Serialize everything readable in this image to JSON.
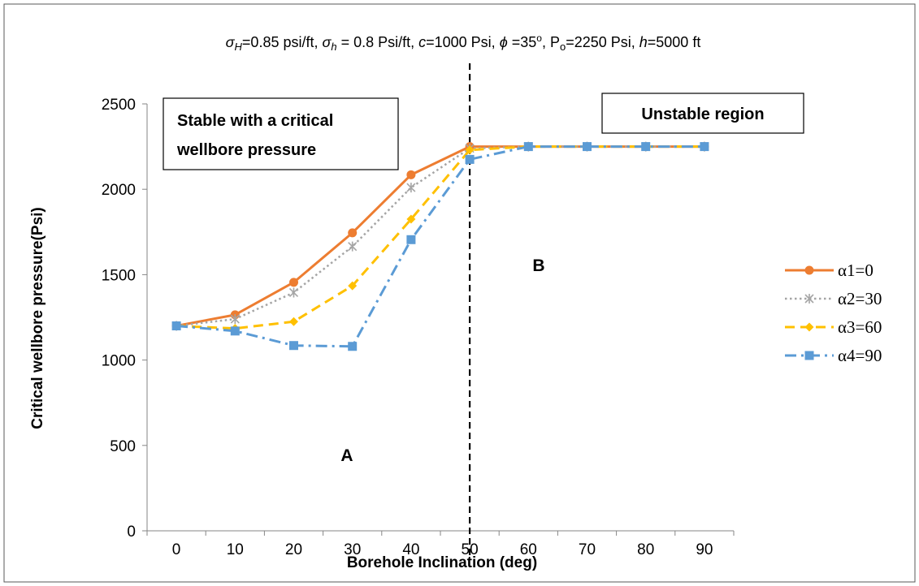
{
  "chart_data": {
    "type": "line",
    "title_parts": {
      "sigma_H_symbol": "σ",
      "sigma_H_sub": "H",
      "sigma_H_value": "=0.85 psi/ft, ",
      "sigma_h_symbol": "σ",
      "sigma_h_sub": "h",
      "sigma_h_value": " = 0.8 Psi/ft, ",
      "c_symbol": "c",
      "c_value": "=1000  Psi, ",
      "phi_symbol": "ϕ",
      "phi_value": " =35",
      "phi_deg": "o",
      "phi_after": ", P",
      "p_sub": "o",
      "p_value": "=2250 Psi, ",
      "h_symbol": "h",
      "h_value": "=5000 ft"
    },
    "xlabel": "Borehole Inclination (deg)",
    "ylabel": "Critical wellbore pressure(Psi)",
    "categories": [
      "0",
      "10",
      "20",
      "30",
      "40",
      "50",
      "60",
      "70",
      "80",
      "90"
    ],
    "x": [
      0,
      10,
      20,
      30,
      40,
      50,
      60,
      70,
      80,
      90
    ],
    "ylim": [
      0,
      2500
    ],
    "yticks": [
      "0",
      "500",
      "1000",
      "1500",
      "2000",
      "2500"
    ],
    "ytick_values": [
      0,
      500,
      1000,
      1500,
      2000,
      2500
    ],
    "grid": false,
    "legend_position": "right",
    "series": [
      {
        "name": "α1=0",
        "values": [
          1200,
          1265,
          1455,
          1745,
          2085,
          2250,
          2250,
          2250,
          2250,
          2250
        ],
        "color": "#ED7D31",
        "marker": "circle",
        "dash": "solid"
      },
      {
        "name": "α2=30",
        "values": [
          1200,
          1240,
          1395,
          1665,
          2010,
          2240,
          2250,
          2250,
          2250,
          2250
        ],
        "color": "#A5A5A5",
        "marker": "star",
        "dash": "dot"
      },
      {
        "name": "α3=60",
        "values": [
          1200,
          1185,
          1225,
          1435,
          1825,
          2230,
          2250,
          2250,
          2250,
          2250
        ],
        "color": "#FFC000",
        "marker": "diamond",
        "dash": "dash"
      },
      {
        "name": "α4=90",
        "values": [
          1200,
          1170,
          1085,
          1080,
          1705,
          2175,
          2250,
          2250,
          2250,
          2250
        ],
        "color": "#5B9BD5",
        "marker": "square",
        "dash": "dashdot"
      }
    ],
    "vline_x": 50,
    "annotations": {
      "box_stable_line1": "Stable with a critical",
      "box_stable_line2": "wellbore pressure",
      "box_unstable": "Unstable region",
      "region_a": "A",
      "region_b": "B"
    }
  }
}
